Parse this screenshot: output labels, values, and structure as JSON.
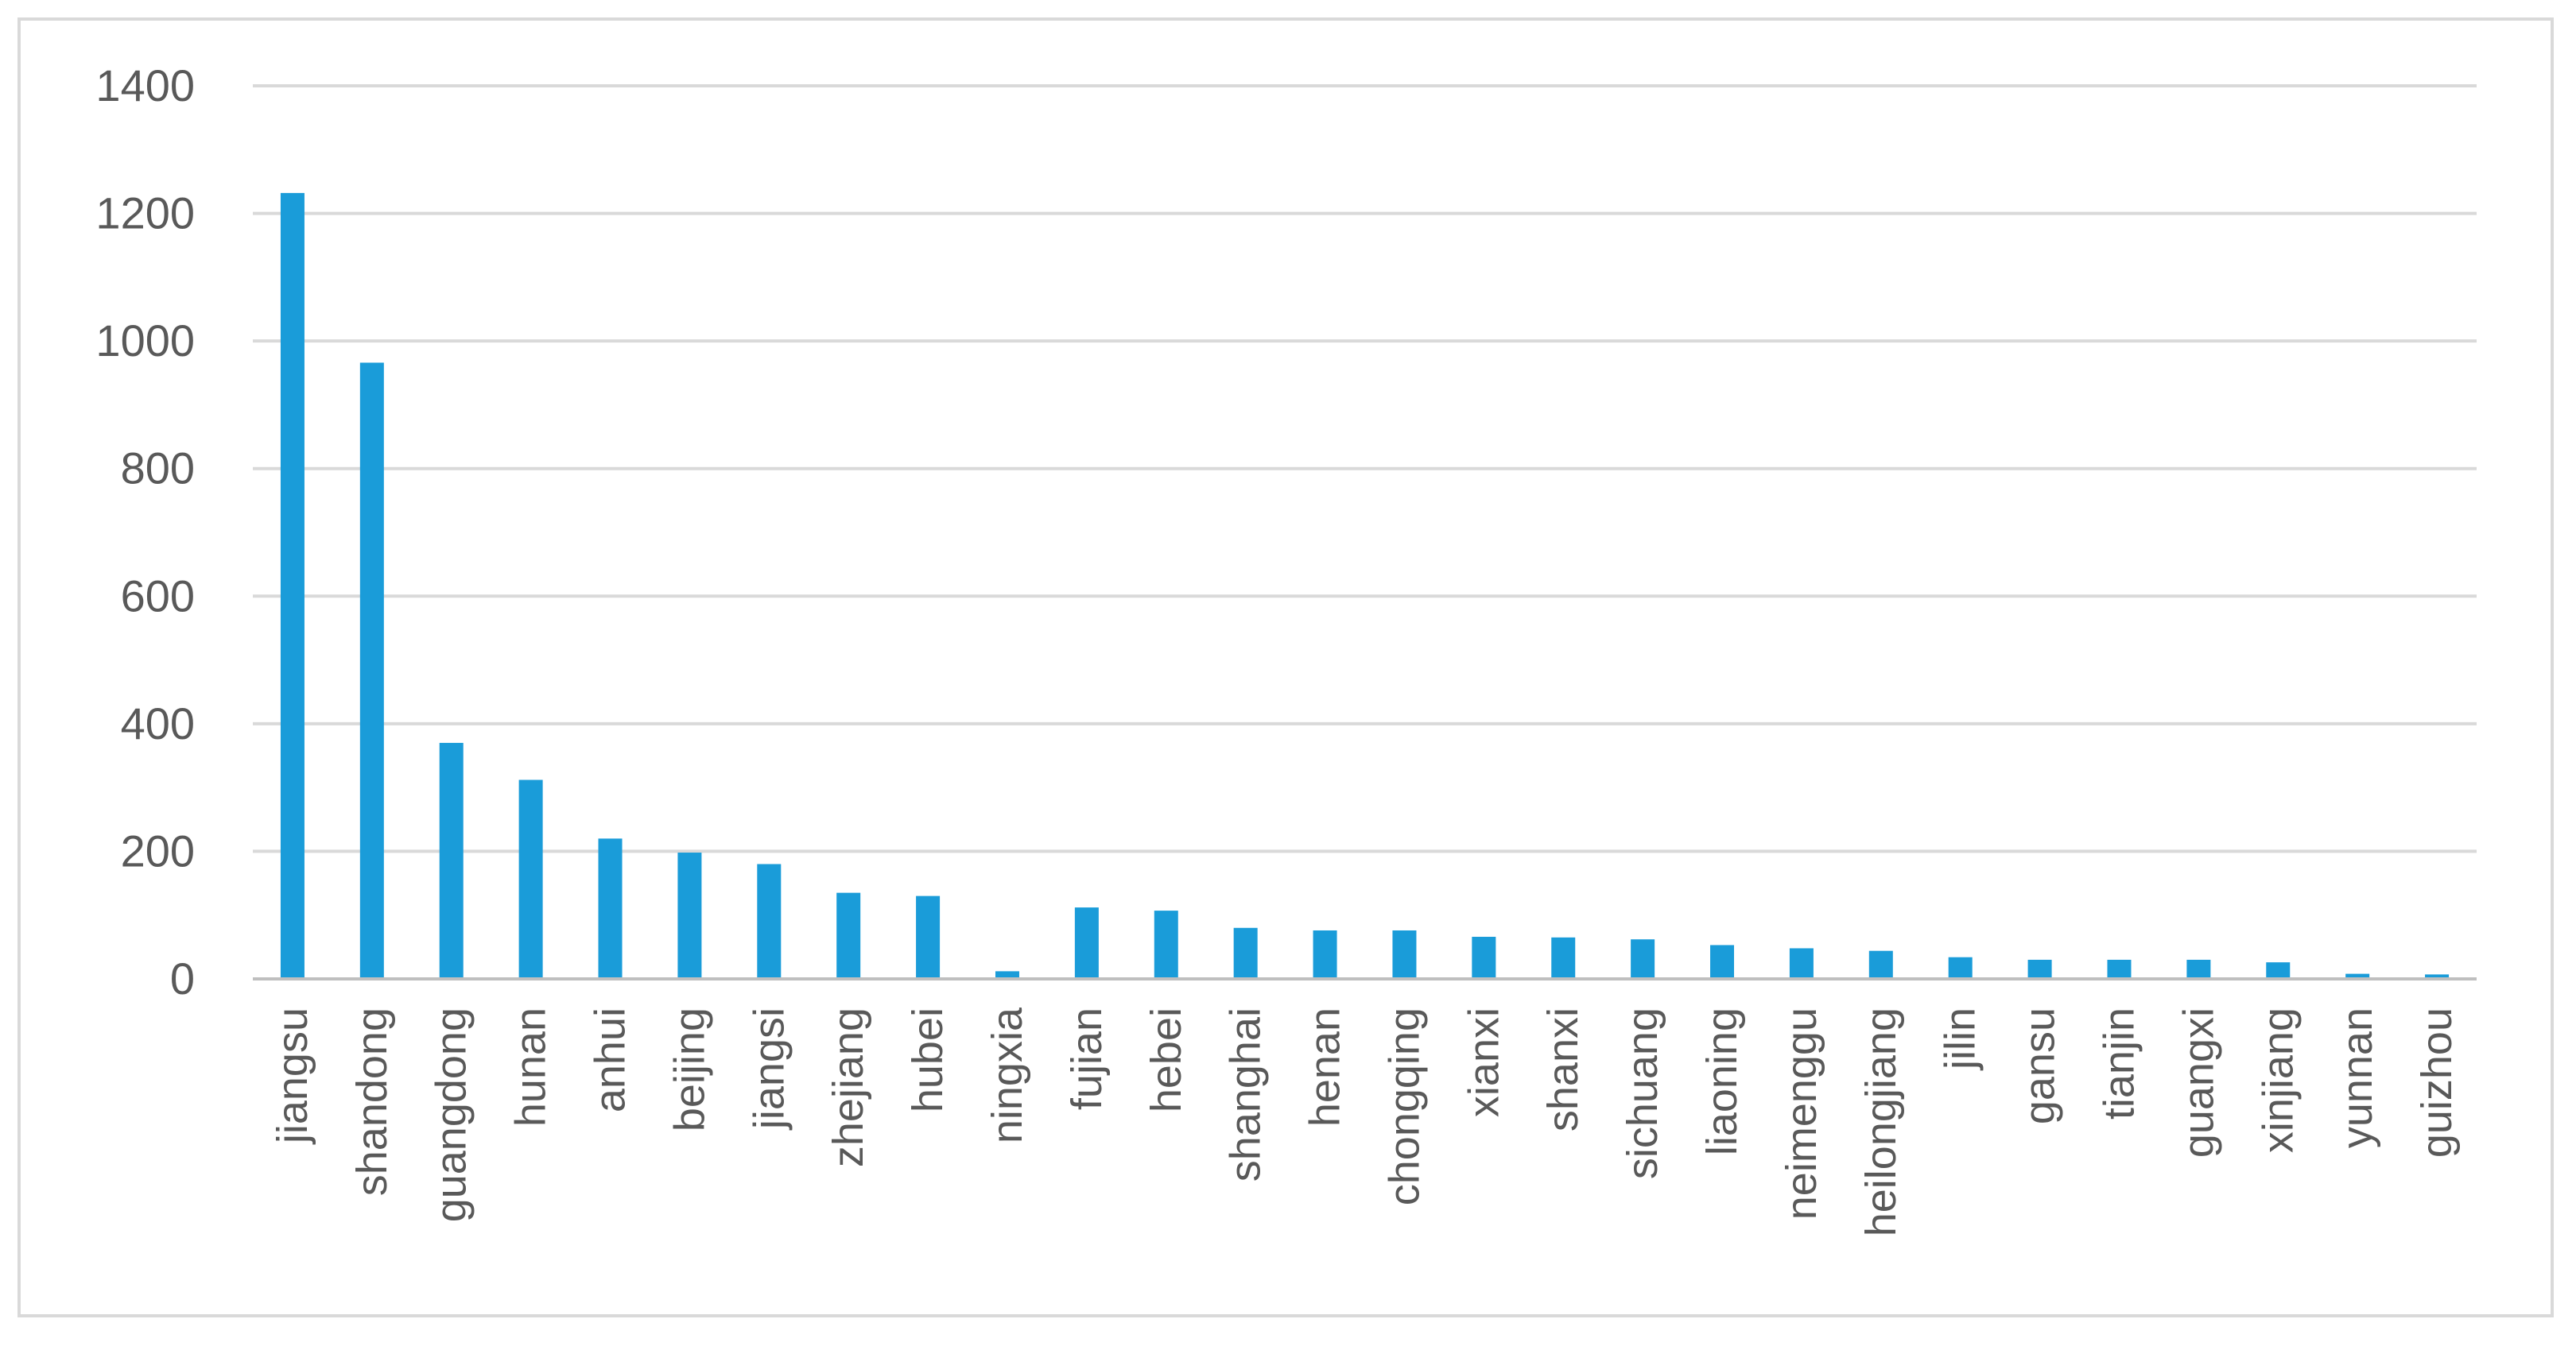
{
  "chart_data": {
    "type": "bar",
    "title": "",
    "xlabel": "",
    "ylabel": "",
    "ylim": [
      0,
      1400
    ],
    "yticks": [
      0,
      200,
      400,
      600,
      800,
      1000,
      1200,
      1400
    ],
    "grid": true,
    "legend": "none",
    "bar_color": "#1a9cd9",
    "categories": [
      "jiangsu",
      "shandong",
      "guangdong",
      "hunan",
      "anhui",
      "beijing",
      "jiangsi",
      "zhejiang",
      "hubei",
      "ningxia",
      "fujian",
      "hebei",
      "shanghai",
      "henan",
      "chongqing",
      "xianxi",
      "shanxi",
      "sichuang",
      "liaoning",
      "neimenggu",
      "heilongjiang",
      "jilin",
      "gansu",
      "tianjin",
      "guangxi",
      "xinjiang",
      "yunnan",
      "guizhou"
    ],
    "values": [
      1232,
      966,
      370,
      312,
      220,
      198,
      180,
      135,
      130,
      12,
      112,
      107,
      80,
      76,
      76,
      66,
      65,
      62,
      53,
      48,
      44,
      34,
      30,
      30,
      30,
      26,
      8,
      7
    ]
  }
}
